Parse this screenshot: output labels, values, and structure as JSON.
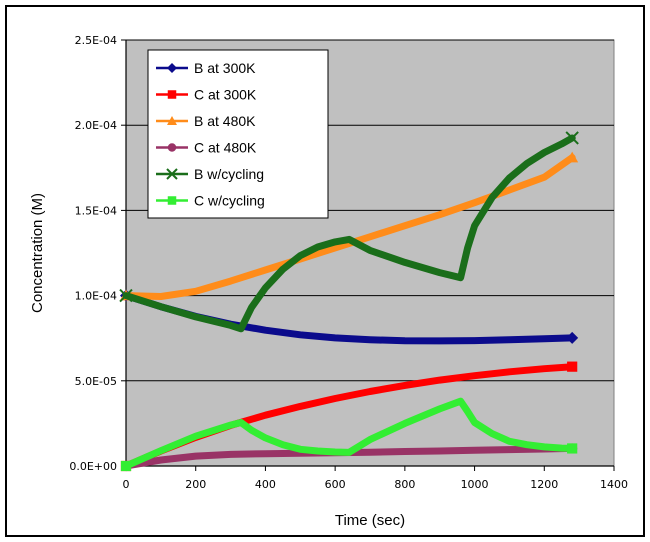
{
  "chart_data": {
    "type": "line",
    "title": "",
    "xlabel": "Time (sec)",
    "ylabel": "Concentration (M)",
    "xlim": [
      0,
      1400
    ],
    "ylim": [
      0,
      0.00025
    ],
    "x_ticks": [
      "0",
      "200",
      "400",
      "600",
      "800",
      "1000",
      "1200",
      "1400"
    ],
    "y_ticks": [
      "0.0E+00",
      "5.0E-05",
      "1.0E-04",
      "1.5E-04",
      "2.0E-04",
      "2.5E-04"
    ],
    "grid": "horizontal",
    "legend_position": "top-left",
    "plot_background": "#c0c0c0",
    "series": [
      {
        "name": "B at 300K",
        "color": "#0b0b8c",
        "marker": "diamond",
        "x": [
          0,
          100,
          200,
          300,
          400,
          500,
          600,
          700,
          800,
          900,
          1000,
          1100,
          1200,
          1280
        ],
        "y": [
          0.0001,
          9.35e-05,
          8.78e-05,
          8.32e-05,
          7.97e-05,
          7.7e-05,
          7.52e-05,
          7.41e-05,
          7.35e-05,
          7.34e-05,
          7.36e-05,
          7.41e-05,
          7.47e-05,
          7.52e-05
        ]
      },
      {
        "name": "C at 300K",
        "color": "#ff0000",
        "marker": "square",
        "x": [
          0,
          100,
          200,
          300,
          400,
          500,
          600,
          700,
          800,
          900,
          1000,
          1100,
          1200,
          1280
        ],
        "y": [
          0.0,
          8.8e-06,
          1.68e-05,
          2.38e-05,
          2.98e-05,
          3.5e-05,
          3.96e-05,
          4.37e-05,
          4.73e-05,
          5.04e-05,
          5.3e-05,
          5.53e-05,
          5.71e-05,
          5.83e-05
        ]
      },
      {
        "name": "B at 480K",
        "color": "#ff8c1a",
        "marker": "triangle",
        "x": [
          0,
          100,
          200,
          300,
          400,
          500,
          600,
          700,
          800,
          900,
          1000,
          1100,
          1200,
          1280
        ],
        "y": [
          0.0001,
          9.95e-05,
          0.0001025,
          0.0001085,
          0.000115,
          0.0001215,
          0.000128,
          0.0001345,
          0.000141,
          0.0001475,
          0.0001545,
          0.000162,
          0.0001695,
          0.000181
        ]
      },
      {
        "name": "C at 480K",
        "color": "#993366",
        "marker": "circle",
        "x": [
          0,
          100,
          200,
          300,
          400,
          500,
          600,
          700,
          800,
          900,
          1000,
          1100,
          1200,
          1280
        ],
        "y": [
          0.0,
          3.5e-06,
          5.8e-06,
          6.8e-06,
          7.2e-06,
          7.5e-06,
          7.8e-06,
          8.1e-06,
          8.5e-06,
          8.8e-06,
          9.2e-06,
          9.6e-06,
          1e-05,
          1.03e-05
        ]
      },
      {
        "name": "B w/cycling",
        "color": "#1a6e1a",
        "marker": "x",
        "x": [
          0,
          100,
          200,
          300,
          330,
          360,
          400,
          450,
          500,
          550,
          600,
          640,
          700,
          800,
          900,
          960,
          980,
          1000,
          1050,
          1100,
          1150,
          1200,
          1250,
          1280
        ],
        "y": [
          0.0001,
          9.35e-05,
          8.75e-05,
          8.25e-05,
          8.05e-05,
          9.3e-05,
          0.0001045,
          0.0001155,
          0.0001235,
          0.0001285,
          0.0001315,
          0.000133,
          0.0001265,
          0.0001195,
          0.0001135,
          0.0001105,
          0.000128,
          0.000141,
          0.0001575,
          0.000169,
          0.0001775,
          0.000184,
          0.000189,
          0.0001925
        ]
      },
      {
        "name": "C w/cycling",
        "color": "#33ee33",
        "marker": "square",
        "x": [
          0,
          100,
          200,
          300,
          330,
          360,
          400,
          450,
          500,
          550,
          600,
          640,
          700,
          800,
          900,
          960,
          980,
          1000,
          1050,
          1100,
          1150,
          1200,
          1250,
          1280
        ],
        "y": [
          0.0,
          9e-06,
          1.75e-05,
          2.4e-05,
          2.55e-05,
          2.1e-05,
          1.65e-05,
          1.25e-05,
          9.8e-06,
          8.8e-06,
          8.2e-06,
          8e-06,
          1.55e-05,
          2.5e-05,
          3.35e-05,
          3.8e-05,
          3.2e-05,
          2.55e-05,
          1.9e-05,
          1.45e-05,
          1.25e-05,
          1.12e-05,
          1.05e-05,
          1.03e-05
        ]
      }
    ]
  }
}
